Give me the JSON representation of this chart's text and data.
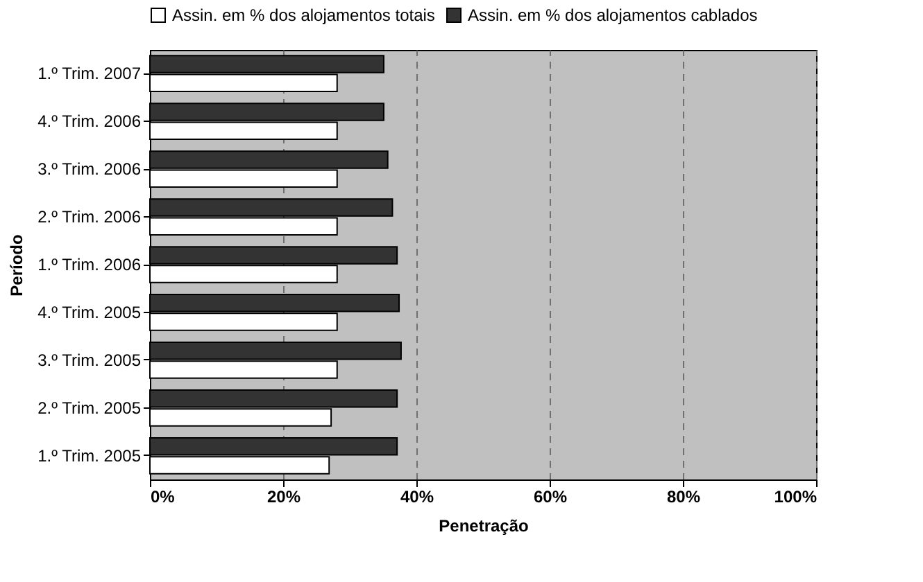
{
  "chart_data": {
    "type": "bar",
    "orientation": "horizontal",
    "xlabel": "Penetração",
    "ylabel": "Período",
    "categories": [
      "1.º Trim. 2007",
      "4.º Trim. 2006",
      "3.º Trim. 2006",
      "2.º Trim. 2006",
      "1.º Trim. 2006",
      "4.º Trim. 2005",
      "3.º Trim. 2005",
      "2.º Trim. 2005",
      "1.º Trim. 2005"
    ],
    "series": [
      {
        "name": "Assin. em % dos alojamentos totais",
        "color": "#ffffff",
        "values": [
          28.1,
          28.1,
          28.1,
          28.1,
          28.1,
          28.1,
          28.1,
          27.2,
          26.9
        ]
      },
      {
        "name": "Assin. em % dos alojamentos cablados",
        "color": "#333333",
        "values": [
          35.1,
          35.1,
          35.7,
          36.4,
          37.1,
          37.4,
          37.7,
          37.1,
          37.1
        ]
      }
    ],
    "xlim": [
      0,
      100
    ],
    "xticks": [
      {
        "value": 0,
        "label": "0%"
      },
      {
        "value": 20,
        "label": "20%"
      },
      {
        "value": 40,
        "label": "40%"
      },
      {
        "value": 60,
        "label": "60%"
      },
      {
        "value": 80,
        "label": "80%"
      },
      {
        "value": 100,
        "label": "100%"
      }
    ],
    "grid": "x",
    "legend": "top"
  }
}
